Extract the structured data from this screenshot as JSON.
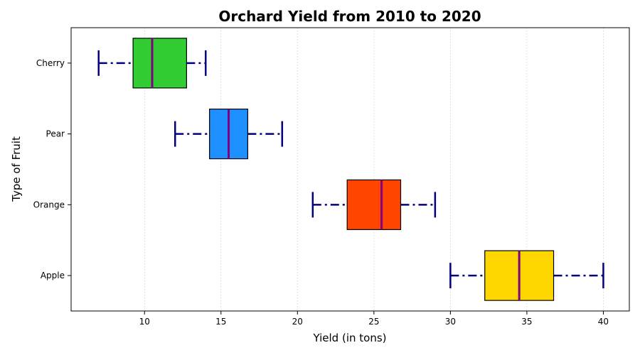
{
  "chart_data": {
    "type": "box",
    "orientation": "horizontal",
    "title": "Orchard Yield from 2010 to 2020",
    "xlabel": "Yield (in tons)",
    "ylabel": "Type of Fruit",
    "xlim": [
      5.2,
      41.7
    ],
    "xticks": [
      10,
      15,
      20,
      25,
      30,
      35,
      40
    ],
    "grid": "x-dotted",
    "categories": [
      "Apple",
      "Orange",
      "Pear",
      "Cherry"
    ],
    "boxes": [
      {
        "category": "Apple",
        "whisker_low": 30,
        "q1": 32.25,
        "median": 34.5,
        "q3": 36.75,
        "whisker_high": 40,
        "color": "#FFD700"
      },
      {
        "category": "Orange",
        "whisker_low": 21,
        "q1": 23.25,
        "median": 25.5,
        "q3": 26.75,
        "whisker_high": 29,
        "color": "#FF4500"
      },
      {
        "category": "Pear",
        "whisker_low": 12,
        "q1": 14.25,
        "median": 15.5,
        "q3": 16.75,
        "whisker_high": 19,
        "color": "#1E90FF"
      },
      {
        "category": "Cherry",
        "whisker_low": 7,
        "q1": 9.25,
        "median": 10.5,
        "q3": 12.75,
        "whisker_high": 14,
        "color": "#32CD32"
      }
    ],
    "median_color": "#800080",
    "whisker_color": "#000080",
    "box_edge_color": "#000000"
  }
}
